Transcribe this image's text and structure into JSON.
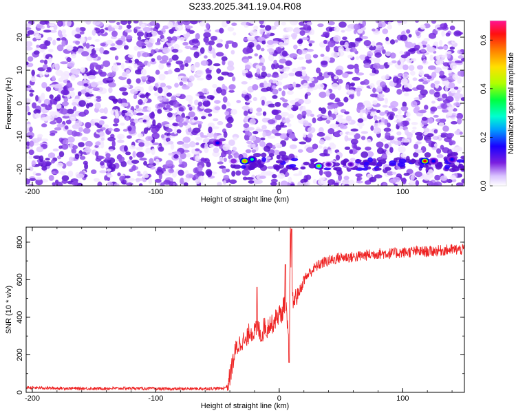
{
  "title": "S233.2025.341.19.04.R08",
  "chart_data": [
    {
      "type": "heatmap",
      "title": "S233.2025.341.19.04.R08",
      "xlabel": "Height of straight line (km)",
      "ylabel": "Frequency (Hz)",
      "xlim": [
        -205,
        150
      ],
      "ylim": [
        -25,
        25
      ],
      "x_ticks": [
        -200,
        -100,
        0,
        100
      ],
      "y_ticks": [
        -20,
        -10,
        0,
        10,
        20
      ],
      "x_tick_labels": [
        "-200",
        "-100",
        "0",
        "100"
      ],
      "y_tick_labels": [
        "-20",
        "-10",
        "0",
        "10",
        "20"
      ],
      "colorbar": {
        "label": "Normalized spectral amplitude",
        "range": [
          0,
          0.68
        ],
        "ticks": [
          0.0,
          0.2,
          0.4,
          0.6
        ],
        "tick_labels": [
          "0.0",
          "0.2",
          "0.4",
          "0.6"
        ],
        "colormap": [
          "#ffffff",
          "#e6d0ff",
          "#8a2be2",
          "#5a00d6",
          "#0000ff",
          "#00c8ff",
          "#00ff7f",
          "#7fff00",
          "#ffff00",
          "#ff8c00",
          "#ff0000",
          "#ff1493"
        ]
      },
      "features": [
        {
          "x": -50,
          "y": -12,
          "value": 0.25
        },
        {
          "x": -37,
          "y": -17.5,
          "value": 0.15
        },
        {
          "x": -28,
          "y": -17.5,
          "value": 0.55
        },
        {
          "x": -22,
          "y": -17,
          "value": 0.35
        },
        {
          "x": 32,
          "y": -19,
          "value": 0.45
        },
        {
          "x": 40,
          "y": -18.5,
          "value": 0.2
        },
        {
          "x": 58,
          "y": -18.5,
          "value": 0.2
        },
        {
          "x": 118,
          "y": -17.5,
          "value": 0.6
        },
        {
          "x": 125,
          "y": -17.5,
          "value": 0.22
        },
        {
          "x": 140,
          "y": -17,
          "value": 0.22
        }
      ],
      "gaps_x": [
        -32,
        30
      ]
    },
    {
      "type": "line",
      "xlabel": "Height of straight line (km)",
      "ylabel": "SNR (10 * v/v)",
      "xlim": [
        -205,
        150
      ],
      "ylim": [
        0,
        880
      ],
      "x_ticks": [
        -200,
        -100,
        0,
        100
      ],
      "y_ticks": [
        0,
        200,
        400,
        600,
        800
      ],
      "x_tick_labels": [
        "-200",
        "-100",
        "0",
        "100"
      ],
      "y_tick_labels": [
        "0",
        "200",
        "400",
        "600",
        "800"
      ],
      "line_color": "#ee2222",
      "series": [
        {
          "x": [
            -205,
            -180,
            -150,
            -120,
            -90,
            -60,
            -45,
            -42,
            -40,
            -38,
            -35,
            -32,
            -30,
            -27,
            -24,
            -20,
            -17,
            -14,
            -12,
            -10,
            -8,
            -6,
            -4,
            -2,
            0,
            2,
            4,
            6,
            8,
            9,
            10,
            11,
            13,
            15,
            18,
            20,
            25,
            30,
            35,
            40,
            50,
            60,
            70,
            80,
            90,
            100,
            110,
            120,
            130,
            140,
            150
          ],
          "y": [
            25,
            22,
            20,
            22,
            18,
            20,
            22,
            35,
            80,
            150,
            230,
            260,
            280,
            260,
            330,
            320,
            340,
            300,
            360,
            330,
            370,
            360,
            380,
            400,
            420,
            410,
            480,
            420,
            200,
            870,
            560,
            480,
            500,
            520,
            560,
            600,
            640,
            670,
            690,
            700,
            720,
            720,
            730,
            740,
            740,
            745,
            750,
            750,
            755,
            760,
            760
          ]
        }
      ],
      "spikes": [
        {
          "x": -18,
          "y": 560
        },
        {
          "x": 5,
          "y": 680
        },
        {
          "x": 8,
          "y": 160
        },
        {
          "x": 10,
          "y": 870
        }
      ]
    }
  ]
}
